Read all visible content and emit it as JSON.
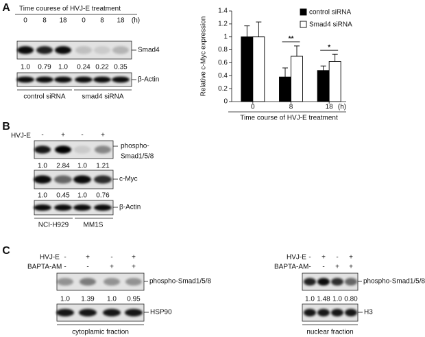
{
  "panel_a": {
    "label": "A",
    "title": "Time courese of HVJ-E treatment",
    "time_points": [
      "0",
      "8",
      "18",
      "0",
      "8",
      "18"
    ],
    "unit": "(h)",
    "blots": [
      {
        "name": "Smad4",
        "quantification": [
          "1.0",
          "0.79",
          "1.0",
          "0.24",
          "0.22",
          "0.35"
        ]
      },
      {
        "name": "β-Actin"
      }
    ],
    "groups": [
      "control siRNA",
      "smad4 siRNA"
    ]
  },
  "chart_data": {
    "type": "bar",
    "ylabel": "Relative c-Myc expression",
    "xlabel": "Time course of HVJ-E treatment",
    "x_unit": "(h)",
    "categories": [
      "0",
      "8",
      "18"
    ],
    "series": [
      {
        "name": "control siRNA",
        "color": "#000000",
        "values": [
          1.0,
          0.38,
          0.48
        ],
        "errors": [
          0.17,
          0.14,
          0.07
        ]
      },
      {
        "name": "Smad4 siRNA",
        "color": "#ffffff",
        "values": [
          1.0,
          0.7,
          0.62
        ],
        "errors": [
          0.23,
          0.16,
          0.11
        ]
      }
    ],
    "annotations": [
      null,
      "**",
      "*"
    ],
    "ylim": [
      0,
      1.4
    ],
    "yticks": [
      0,
      0.2,
      0.4,
      0.6,
      0.8,
      1,
      1.2,
      1.4
    ],
    "legend": "upper right"
  },
  "panel_b": {
    "label": "B",
    "treatment": "HVJ-E",
    "signs": [
      "-",
      "+",
      "-",
      "+"
    ],
    "blots": [
      {
        "name": [
          "phospho-",
          "Smad1/5/8"
        ],
        "quantification": [
          "1.0",
          "2.84",
          "1.0",
          "1.21"
        ]
      },
      {
        "name": "c-Myc",
        "quantification": [
          "1.0",
          "0.45",
          "1.0",
          "0.76"
        ]
      },
      {
        "name": "β-Actin"
      }
    ],
    "cell_lines": [
      "NCI-H929",
      "MM1S"
    ]
  },
  "panel_c": {
    "label": "C",
    "fractions": [
      {
        "treatments": [
          {
            "name": "HVJ-E",
            "signs": [
              "-",
              "+",
              "-",
              "+"
            ]
          },
          {
            "name": "BAPTA-AM",
            "signs": [
              "-",
              "-",
              "+",
              "+"
            ]
          }
        ],
        "blots": [
          {
            "name": "phospho-Smad1/5/8",
            "quantification": [
              "1.0",
              "1.39",
              "1.0",
              "0.95"
            ]
          },
          {
            "name": "HSP90"
          }
        ],
        "fraction": "cytoplamic fraction"
      },
      {
        "treatments": [
          {
            "name": "HVJ-E",
            "signs": [
              "-",
              "+",
              "-",
              "+"
            ]
          },
          {
            "name": "BAPTA-AM",
            "signs": [
              "-",
              "-",
              "+",
              "+"
            ]
          }
        ],
        "blots": [
          {
            "name": "phospho-Smad1/5/8",
            "quantification": [
              "1.0",
              "1.48",
              "1.0",
              "0.80"
            ]
          },
          {
            "name": "H3"
          }
        ],
        "fraction": "nuclear fraction"
      }
    ]
  }
}
